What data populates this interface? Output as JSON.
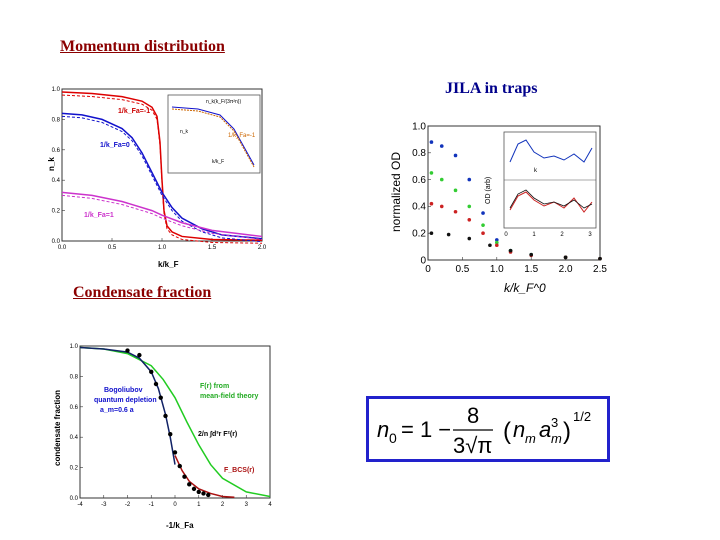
{
  "headings": {
    "momentum": "Momentum distribution",
    "jila": "JILA in traps",
    "condensate": "Condensate fraction"
  },
  "colors": {
    "heading_red": "#8b0000",
    "heading_blue": "#00008b",
    "formula_border": "#2222cc"
  },
  "chart_data": [
    {
      "type": "line",
      "ylabel": "n_k",
      "xlabel": "k/k_F",
      "xlim": [
        0,
        2.0
      ],
      "ylim": [
        0,
        1.0
      ],
      "x_ticks": [
        "0.0",
        "0.5",
        "1.0",
        "1.5",
        "2.0"
      ],
      "y_ticks": [
        "0.0",
        "0.2",
        "0.4",
        "0.6",
        "0.8",
        "1.0"
      ],
      "annotations": [
        "1/k_Fa=-1",
        "1/k_Fa=0",
        "1/k_Fa=1"
      ],
      "inset": {
        "labels": [
          "n_k",
          "k/k_F",
          "n_k(k_F/(3π²n))",
          "1/k_Fa=-1"
        ]
      },
      "series": [
        {
          "color": "#dd0000",
          "x": [
            0,
            0.3,
            0.6,
            0.8,
            0.9,
            0.95,
            0.98,
            1.0,
            1.02,
            1.05,
            1.1,
            1.2,
            1.5,
            2.0
          ],
          "values": [
            0.98,
            0.97,
            0.95,
            0.92,
            0.88,
            0.82,
            0.65,
            0.4,
            0.2,
            0.1,
            0.06,
            0.03,
            0.01,
            0.005
          ]
        },
        {
          "color": "#1111cc",
          "x": [
            0,
            0.2,
            0.4,
            0.6,
            0.7,
            0.8,
            0.9,
            1.0,
            1.1,
            1.2,
            1.4,
            1.6,
            2.0
          ],
          "values": [
            0.84,
            0.83,
            0.8,
            0.74,
            0.68,
            0.58,
            0.45,
            0.32,
            0.22,
            0.15,
            0.08,
            0.04,
            0.015
          ]
        },
        {
          "color": "#cc33cc",
          "x": [
            0,
            0.3,
            0.6,
            0.9,
            1.0,
            1.2,
            1.5,
            2.0
          ],
          "values": [
            0.32,
            0.3,
            0.26,
            0.2,
            0.17,
            0.12,
            0.07,
            0.03
          ]
        }
      ]
    },
    {
      "type": "scatter",
      "ylabel": "normalized OD",
      "xlabel": "k/k_F^0",
      "xlim": [
        0,
        2.5
      ],
      "ylim": [
        0,
        1.0
      ],
      "x_ticks": [
        "0",
        "0.5",
        "1.0",
        "1.5",
        "2.0",
        "2.5"
      ],
      "y_ticks": [
        "0",
        "0.2",
        "0.4",
        "0.6",
        "0.8",
        "1.0"
      ],
      "inset": {
        "labels": [
          "OD (arb)",
          "k"
        ],
        "x_ticks": [
          "0",
          "1",
          "2",
          "3"
        ]
      },
      "series": [
        {
          "color": "#1133bb",
          "x": [
            0.05,
            0.2,
            0.4,
            0.6,
            0.8,
            1.0,
            1.2,
            1.5,
            2.0,
            2.5
          ],
          "values": [
            0.88,
            0.85,
            0.78,
            0.6,
            0.35,
            0.15,
            0.07,
            0.04,
            0.02,
            0.01
          ]
        },
        {
          "color": "#33cc33",
          "x": [
            0.05,
            0.2,
            0.4,
            0.6,
            0.8,
            1.0,
            1.2,
            1.5,
            2.0,
            2.5
          ],
          "values": [
            0.65,
            0.6,
            0.52,
            0.4,
            0.26,
            0.13,
            0.07,
            0.04,
            0.02,
            0.01
          ]
        },
        {
          "color": "#cc2222",
          "x": [
            0.05,
            0.2,
            0.4,
            0.6,
            0.8,
            1.0,
            1.2,
            1.5,
            2.0,
            2.5
          ],
          "values": [
            0.42,
            0.4,
            0.36,
            0.3,
            0.2,
            0.11,
            0.06,
            0.035,
            0.02,
            0.01
          ]
        },
        {
          "color": "#111111",
          "x": [
            0.05,
            0.3,
            0.6,
            0.9,
            1.2,
            1.5,
            2.0,
            2.5
          ],
          "values": [
            0.2,
            0.19,
            0.16,
            0.11,
            0.07,
            0.04,
            0.02,
            0.01
          ]
        }
      ]
    },
    {
      "type": "line",
      "ylabel": "condensate fraction",
      "xlabel": "-1/k_Fa",
      "xlim": [
        -4,
        4
      ],
      "ylim": [
        0,
        1.0
      ],
      "x_ticks": [
        "-4",
        "-3",
        "-2",
        "-1",
        "0",
        "1",
        "2",
        "3",
        "4"
      ],
      "y_ticks": [
        "0.0",
        "0.2",
        "0.4",
        "0.6",
        "0.8",
        "1.0"
      ],
      "annotations": [
        "Bogoliubov",
        "quantum depletion",
        "a_m=0.6 a",
        "F(r) from",
        "mean-field theory",
        "2/n ∫d³r F²(r)",
        "F_BCS(r)"
      ],
      "series": [
        {
          "color": "#22cc22",
          "x": [
            -4,
            -3,
            -2,
            -1,
            -0.5,
            0,
            0.5,
            1,
            1.5,
            2,
            3,
            4
          ],
          "values": [
            0.99,
            0.98,
            0.95,
            0.87,
            0.78,
            0.66,
            0.5,
            0.35,
            0.22,
            0.13,
            0.04,
            0.01
          ]
        },
        {
          "color": "#112266",
          "x": [
            -4,
            -3,
            -2,
            -1.5,
            -1,
            -0.7,
            -0.4,
            -0.2,
            0
          ],
          "values": [
            0.99,
            0.98,
            0.96,
            0.92,
            0.83,
            0.72,
            0.55,
            0.4,
            0.22
          ]
        },
        {
          "color": "#aa1111",
          "x": [
            0,
            0.3,
            0.6,
            1.0,
            1.5,
            2.0,
            2.5
          ],
          "values": [
            0.28,
            0.18,
            0.11,
            0.06,
            0.03,
            0.01,
            0.005
          ]
        },
        {
          "color": "#000000",
          "x": [
            -2,
            -1.5,
            -1,
            -0.8,
            -0.6,
            -0.4,
            -0.2,
            0,
            0.2,
            0.4,
            0.6,
            0.8,
            1.0,
            1.2,
            1.4
          ],
          "values": [
            0.97,
            0.94,
            0.83,
            0.75,
            0.66,
            0.54,
            0.42,
            0.3,
            0.21,
            0.14,
            0.09,
            0.06,
            0.04,
            0.03,
            0.02
          ]
        }
      ]
    }
  ],
  "formula": {
    "lhs": "n",
    "lhs_sub": "0",
    "eq": "= 1 −",
    "num": "8",
    "den": "3√π",
    "paren_open": "(",
    "nm": "n",
    "nm_sub": "m",
    "am": "a",
    "am_sub": "m",
    "am_sup": "3",
    "paren_close": ")",
    "exp": "1/2"
  }
}
